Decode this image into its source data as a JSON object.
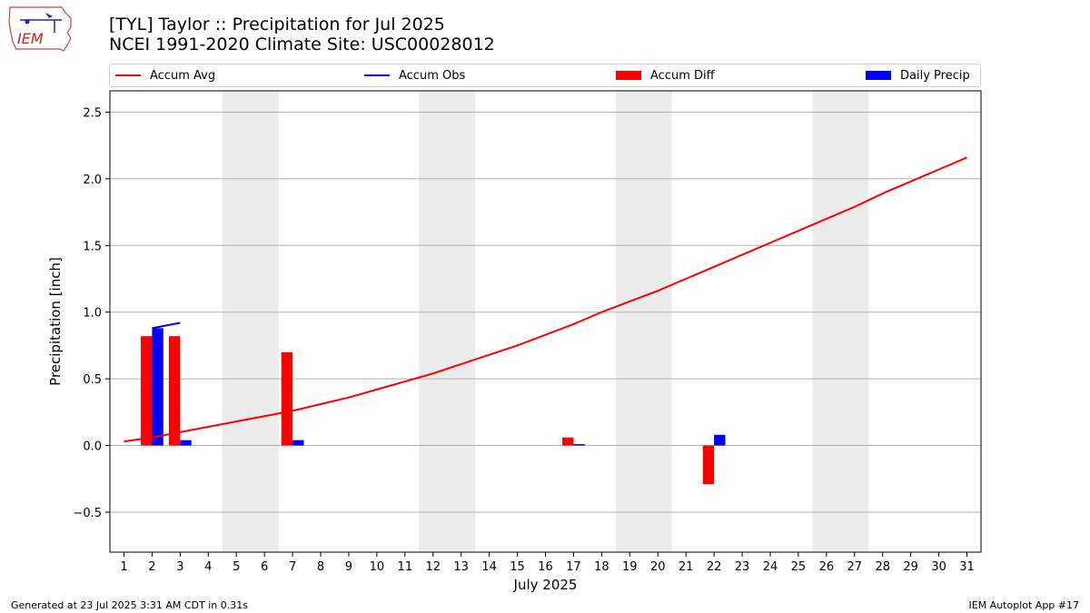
{
  "header": {
    "title_line1": "[TYL] Taylor :: Precipitation for Jul 2025",
    "title_line2": "NCEI 1991-2020 Climate Site: USC00028012",
    "logo_text": "IEM"
  },
  "footer": {
    "left": "Generated at 23 Jul 2025 3:31 AM CDT in 0.31s",
    "right": "IEM Autoplot App #17"
  },
  "legend": {
    "accum_avg": "Accum Avg",
    "accum_obs": "Accum Obs",
    "accum_diff": "Accum Diff",
    "daily_precip": "Daily Precip"
  },
  "colors": {
    "accum_avg": "#ff0000",
    "accum_obs": "#0000ff",
    "accum_diff": "#ff0000",
    "daily_precip": "#0000ff",
    "weekend_shade": "#ececec",
    "grid": "#b0b0b0"
  },
  "chart_data": {
    "type": "bar",
    "xlabel": "July 2025",
    "ylabel": "Precipitation [inch]",
    "xlim": [
      0.5,
      31.5
    ],
    "ylim": [
      -0.8,
      2.66
    ],
    "y_ticks": [
      -0.5,
      0.0,
      0.5,
      1.0,
      1.5,
      2.0,
      2.5
    ],
    "y_tick_labels": [
      "−0.5",
      "0.0",
      "0.5",
      "1.0",
      "1.5",
      "2.0",
      "2.5"
    ],
    "x_ticks": [
      1,
      2,
      3,
      4,
      5,
      6,
      7,
      8,
      9,
      10,
      11,
      12,
      13,
      14,
      15,
      16,
      17,
      18,
      19,
      20,
      21,
      22,
      23,
      24,
      25,
      26,
      27,
      28,
      29,
      30,
      31
    ],
    "grid": "horizontal",
    "legend_position": "top",
    "weekend_spans": [
      [
        5,
        6
      ],
      [
        12,
        13
      ],
      [
        19,
        20
      ],
      [
        26,
        27
      ]
    ],
    "series": [
      {
        "name": "Accum Avg",
        "kind": "line",
        "x": [
          1,
          2,
          3,
          4,
          5,
          6,
          7,
          8,
          9,
          10,
          11,
          12,
          13,
          14,
          15,
          16,
          17,
          18,
          19,
          20,
          21,
          22,
          23,
          24,
          25,
          26,
          27,
          28,
          29,
          30,
          31
        ],
        "values": [
          0.03,
          0.06,
          0.1,
          0.14,
          0.18,
          0.22,
          0.26,
          0.31,
          0.36,
          0.42,
          0.48,
          0.54,
          0.61,
          0.68,
          0.75,
          0.83,
          0.91,
          1.0,
          1.08,
          1.16,
          1.25,
          1.34,
          1.43,
          1.52,
          1.61,
          1.7,
          1.79,
          1.89,
          1.98,
          2.07,
          2.16
        ]
      },
      {
        "name": "Accum Obs",
        "kind": "line",
        "x": [
          2,
          3
        ],
        "values": [
          0.88,
          0.92
        ]
      },
      {
        "name": "Accum Diff",
        "kind": "bar",
        "x": [
          2,
          3,
          7,
          17,
          22
        ],
        "values": [
          0.82,
          0.82,
          0.7,
          0.06,
          -0.29
        ]
      },
      {
        "name": "Daily Precip",
        "kind": "bar",
        "x": [
          2,
          3,
          7,
          17,
          22
        ],
        "values": [
          0.88,
          0.04,
          0.04,
          0.01,
          0.08
        ]
      }
    ]
  }
}
